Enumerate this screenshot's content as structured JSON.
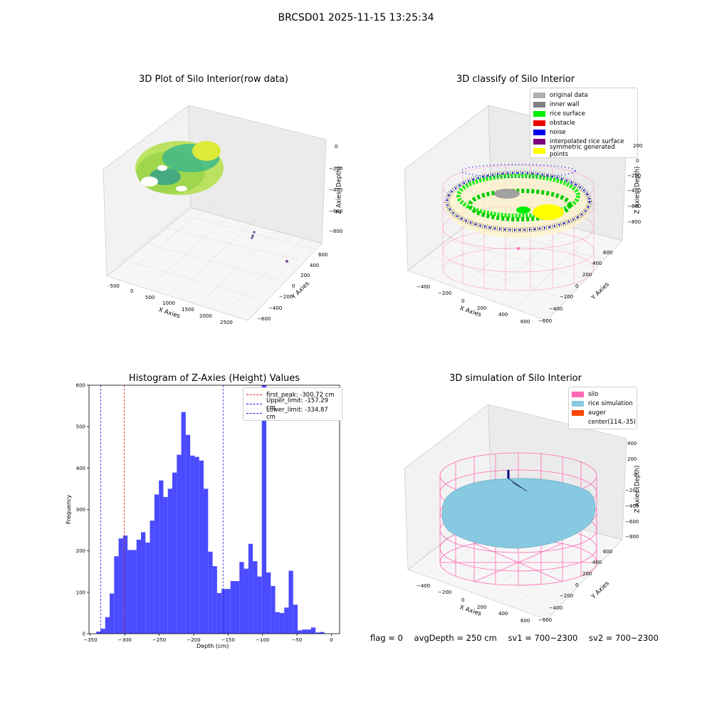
{
  "suptitle": "BRCSD01 2025-11-15 13:25:34",
  "colors": {
    "histogram_bar": "#4a4aff",
    "first_peak_line": "#e02020",
    "limit_lines": "#2020e0",
    "silo_mesh": "#ff69b4",
    "rice_simulation": "#87c9e0",
    "noise": "#0000ee",
    "rice_surface": "#00ee00",
    "symmetric_points": "#ffff00"
  },
  "footer": {
    "flag": "flag = 0",
    "avg_depth": "avgDepth = 250 cm",
    "sv1": "sv1 = 700~2300",
    "sv2": "sv2 = 700~2300"
  },
  "chart_data": [
    {
      "type": "scatter",
      "title": "3D Plot of Silo Interior(row data)",
      "xlabel": "X Axies",
      "ylabel": "Y Axies",
      "zlabel": "Z Axies (Depth)",
      "x_ticks": [
        "-500",
        "0",
        "500",
        "1000",
        "1500",
        "2000",
        "2500"
      ],
      "y_ticks": [
        "600",
        "400",
        "200",
        "0",
        "−200",
        "−400",
        "−600"
      ],
      "z_ticks": [
        "0",
        "−200",
        "−400",
        "−600",
        "−800"
      ],
      "colormap": "viridis"
    },
    {
      "type": "scatter",
      "title": "3D classify of Silo Interior",
      "xlabel": "X Axies",
      "ylabel": "Y Axies",
      "zlabel": "Z Axies (Depth)",
      "x_ticks": [
        "−400",
        "−200",
        "0",
        "200",
        "400",
        "600"
      ],
      "y_ticks": [
        "600",
        "400",
        "200",
        "0",
        "−200",
        "−400",
        "−600"
      ],
      "z_ticks": [
        "200",
        "0",
        "−200",
        "−400",
        "−600",
        "−800"
      ],
      "legend_placement": "top-right",
      "legend": [
        {
          "label": "original data",
          "color": "#b0b0b0"
        },
        {
          "label": "inner wall",
          "color": "#808080"
        },
        {
          "label": "rice surface",
          "color": "#00ee00"
        },
        {
          "label": "obstacle",
          "color": "#ee0000"
        },
        {
          "label": "noise",
          "color": "#0000ee"
        },
        {
          "label": "interpolated rice surface",
          "color": "#800080"
        },
        {
          "label": "symmetric generated points",
          "color": "#ffff00"
        }
      ]
    },
    {
      "type": "bar",
      "title": "Histogram of Z-Axies (Height) Values",
      "xlabel": "Depth (cm)",
      "ylabel": "Frequency",
      "xlim": [
        -352,
        12
      ],
      "ylim": [
        0,
        600
      ],
      "x_ticks": [
        "−350",
        "−300",
        "−250",
        "−200",
        "−150",
        "−100",
        "−50",
        "0"
      ],
      "y_ticks": [
        "0",
        "100",
        "200",
        "300",
        "400",
        "500",
        "600"
      ],
      "bin_start": -341.5,
      "bin_width": 6.5,
      "values": [
        5,
        12,
        40,
        97,
        187,
        230,
        237,
        202,
        202,
        227,
        245,
        220,
        273,
        336,
        370,
        330,
        350,
        389,
        432,
        535,
        480,
        430,
        427,
        418,
        350,
        198,
        163,
        98,
        108,
        108,
        127,
        127,
        173,
        157,
        217,
        175,
        138,
        600,
        148,
        115,
        52,
        50,
        63,
        152,
        70,
        8,
        10,
        10,
        15,
        3,
        4
      ],
      "lines": [
        {
          "label": "first_peak: -300.72 cm",
          "x": -300.72,
          "color": "#e02020"
        },
        {
          "label": "Upper_limit: -157.29 cm",
          "x": -157.29,
          "color": "#2020e0"
        },
        {
          "label": "Lower_limit: -334.87 cm",
          "x": -334.87,
          "color": "#2020e0"
        }
      ],
      "legend_placement": "top-right"
    },
    {
      "type": "scatter",
      "title": "3D simulation of Silo Interior",
      "xlabel": "X Axies",
      "ylabel": "Y Axies",
      "zlabel": "Z Axies (Depth)",
      "x_ticks": [
        "−400",
        "−200",
        "0",
        "200",
        "400",
        "600"
      ],
      "y_ticks": [
        "600",
        "400",
        "200",
        "0",
        "−200",
        "−400",
        "−600"
      ],
      "z_ticks": [
        "400",
        "200",
        "0",
        "−200",
        "−400",
        "−600",
        "−800"
      ],
      "legend_placement": "top-right",
      "legend": [
        {
          "label": "silo",
          "color": "#ff69b4"
        },
        {
          "label": "rice simulation",
          "color": "#87c9e0"
        },
        {
          "label": "auger",
          "color": "#ff4500"
        },
        {
          "label": "center(114,-35)",
          "color": ""
        }
      ]
    }
  ]
}
